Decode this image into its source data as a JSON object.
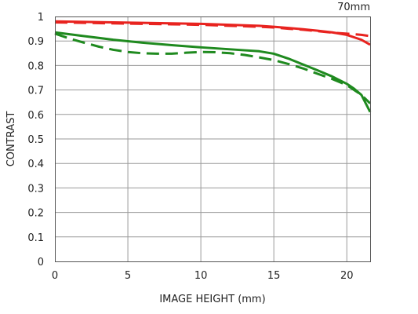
{
  "chart_data": {
    "type": "line",
    "title": "70mm",
    "xlabel": "IMAGE HEIGHT (mm)",
    "ylabel": "CONTRAST",
    "xlim": [
      0,
      21.6
    ],
    "ylim": [
      0,
      1
    ],
    "x_ticks": [
      "0",
      "5",
      "10",
      "15",
      "20"
    ],
    "y_ticks": [
      "0",
      "0.1",
      "0.2",
      "0.3",
      "0.4",
      "0.5",
      "0.6",
      "0.7",
      "0.8",
      "0.9",
      "1"
    ],
    "grid": true,
    "legend": "none",
    "series": [
      {
        "color": "#e8231f",
        "style": "solid",
        "x": [
          0,
          2,
          4,
          6,
          8,
          10,
          12,
          14,
          15,
          16,
          17,
          18,
          19,
          20,
          21,
          21.6
        ],
        "y": [
          0.98,
          0.978,
          0.976,
          0.974,
          0.972,
          0.97,
          0.966,
          0.962,
          0.958,
          0.953,
          0.948,
          0.942,
          0.935,
          0.925,
          0.905,
          0.885
        ]
      },
      {
        "color": "#e8231f",
        "style": "dashed",
        "x": [
          0,
          2,
          4,
          6,
          8,
          10,
          12,
          14,
          15,
          16,
          17,
          18,
          19,
          20,
          21,
          21.6
        ],
        "y": [
          0.976,
          0.974,
          0.972,
          0.97,
          0.968,
          0.966,
          0.962,
          0.958,
          0.955,
          0.95,
          0.946,
          0.94,
          0.934,
          0.93,
          0.925,
          0.92
        ]
      },
      {
        "color": "#1f8a1f",
        "style": "solid",
        "x": [
          0,
          2,
          4,
          6,
          8,
          10,
          12,
          13,
          14,
          15,
          16,
          17,
          18,
          19,
          20,
          20.5,
          21,
          21.6
        ],
        "y": [
          0.935,
          0.92,
          0.905,
          0.893,
          0.883,
          0.874,
          0.866,
          0.862,
          0.858,
          0.848,
          0.828,
          0.804,
          0.78,
          0.755,
          0.725,
          0.705,
          0.68,
          0.61
        ]
      },
      {
        "color": "#1f8a1f",
        "style": "dashed",
        "x": [
          0,
          1,
          2,
          3,
          4,
          5,
          6,
          7,
          8,
          9,
          10,
          11,
          12,
          13,
          14,
          15,
          16,
          17,
          18,
          19,
          20,
          21,
          21.6
        ],
        "y": [
          0.93,
          0.91,
          0.893,
          0.877,
          0.864,
          0.855,
          0.85,
          0.848,
          0.848,
          0.852,
          0.855,
          0.854,
          0.85,
          0.843,
          0.833,
          0.822,
          0.806,
          0.788,
          0.766,
          0.745,
          0.72,
          0.68,
          0.645
        ]
      }
    ]
  }
}
